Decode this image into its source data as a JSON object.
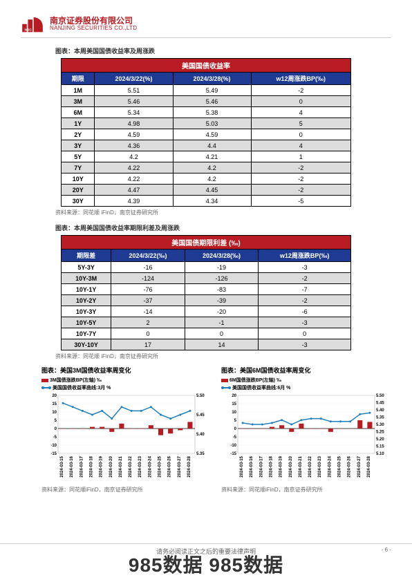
{
  "header": {
    "company_cn": "南京证券股份有限公司",
    "company_en": "NANJING SECURITIES CO.,LTD",
    "logo_color": "#b81c22"
  },
  "table1": {
    "title": "图表：本周美国国债收益率及周涨跌",
    "main_title": "美国国债收益率",
    "headers": [
      "期限",
      "2024/3/22(%)",
      "2024/3/28(%)",
      "w12周涨跌BP(‰)"
    ],
    "rows": [
      {
        "c": [
          "1M",
          "5.51",
          "5.49",
          "-2"
        ],
        "grey": false
      },
      {
        "c": [
          "3M",
          "5.46",
          "5.46",
          "0"
        ],
        "grey": true
      },
      {
        "c": [
          "6M",
          "5.34",
          "5.38",
          "4"
        ],
        "grey": false
      },
      {
        "c": [
          "1Y",
          "4.98",
          "5.03",
          "5"
        ],
        "grey": true
      },
      {
        "c": [
          "2Y",
          "4.59",
          "4.59",
          "0"
        ],
        "grey": false
      },
      {
        "c": [
          "3Y",
          "4.36",
          "4.4",
          "4"
        ],
        "grey": true
      },
      {
        "c": [
          "5Y",
          "4.2",
          "4.21",
          "1"
        ],
        "grey": false
      },
      {
        "c": [
          "7Y",
          "4.22",
          "4.2",
          "-2"
        ],
        "grey": true
      },
      {
        "c": [
          "10Y",
          "4.22",
          "4.2",
          "-2"
        ],
        "grey": false
      },
      {
        "c": [
          "20Y",
          "4.47",
          "4.45",
          "-2"
        ],
        "grey": true
      },
      {
        "c": [
          "30Y",
          "4.39",
          "4.34",
          "-5"
        ],
        "grey": false
      }
    ],
    "source": "资料来源：同花顺 iFinD，南京证券研究所"
  },
  "table2": {
    "title": "图表：本周美国国债收益率期限利差及周涨跌",
    "main_title": "美国国债期限利差 (‰)",
    "headers": [
      "期限差",
      "2024/3/22(‰)",
      "2024/3/28(‰)",
      "w12周涨跌BP(‰)"
    ],
    "rows": [
      {
        "c": [
          "5Y-3Y",
          "-16",
          "-19",
          "-3"
        ],
        "grey": false
      },
      {
        "c": [
          "10Y-3M",
          "-124",
          "-126",
          "-2"
        ],
        "grey": true
      },
      {
        "c": [
          "10Y-1Y",
          "-76",
          "-83",
          "-7"
        ],
        "grey": false
      },
      {
        "c": [
          "10Y-2Y",
          "-37",
          "-39",
          "-2"
        ],
        "grey": true
      },
      {
        "c": [
          "10Y-3Y",
          "-14",
          "-20",
          "-6"
        ],
        "grey": false
      },
      {
        "c": [
          "10Y-5Y",
          "2",
          "-1",
          "-3"
        ],
        "grey": true
      },
      {
        "c": [
          "10Y-7Y",
          "0",
          "0",
          "0"
        ],
        "grey": false
      },
      {
        "c": [
          "30Y-10Y",
          "17",
          "14",
          "-3"
        ],
        "grey": true
      }
    ],
    "source": "资料来源：同花顺 iFinD，南京证券研究所"
  },
  "charts": {
    "left": {
      "title": "图表：美国3M国债收益率周变化",
      "legend_bar": "3M国债涨跌BP(左轴) ‰",
      "legend_line": "美国国债收益率曲线:3月 %",
      "x_labels": [
        "2024-03-15",
        "2024-03-16",
        "2024-03-17",
        "2024-03-18",
        "2024-03-19",
        "2024-03-20",
        "2024-03-21",
        "2024-03-22",
        "2024-03-23",
        "2024-03-24",
        "2024-03-25",
        "2024-03-26",
        "2024-03-27",
        "2024-03-28"
      ],
      "bars": [
        0,
        0,
        0,
        1,
        1,
        -2,
        3,
        0,
        0,
        2,
        -4,
        -3,
        -1,
        4
      ],
      "line": [
        5.48,
        5.47,
        5.46,
        5.45,
        5.46,
        5.44,
        5.47,
        5.46,
        5.46,
        5.47,
        5.45,
        5.44,
        5.45,
        5.46
      ],
      "y_left": {
        "min": -15,
        "max": 20,
        "step": 5
      },
      "y_right": {
        "min": 5.35,
        "max": 5.5,
        "step": 0.05
      },
      "bar_color": "#b81c22",
      "line_color": "#1f7fbf",
      "source": "资料来源：同花顺iFinD，南京证券研究所"
    },
    "right": {
      "title": "图表：美国6M国债收益率周变化",
      "legend_bar": "6M国债涨跌BP(左轴) ‰",
      "legend_line": "美国国债收益率曲线:6月 %",
      "x_labels": [
        "2024-03-15",
        "2024-03-16",
        "2024-03-17",
        "2024-03-18",
        "2024-03-19",
        "2024-03-20",
        "2024-03-21",
        "2024-03-22",
        "2024-03-23",
        "2024-03-24",
        "2024-03-25",
        "2024-03-26",
        "2024-03-27",
        "2024-03-28"
      ],
      "bars": [
        0,
        0,
        0,
        1,
        2,
        -2,
        3,
        0,
        0,
        -2,
        0,
        0,
        5,
        4
      ],
      "line": [
        5.31,
        5.3,
        5.3,
        5.31,
        5.33,
        5.3,
        5.33,
        5.34,
        5.34,
        5.32,
        5.32,
        5.32,
        5.37,
        5.38
      ],
      "y_left": {
        "min": -15,
        "max": 20,
        "step": 5
      },
      "y_right": {
        "min": 5.1,
        "max": 5.5,
        "step": 0.05
      },
      "bar_color": "#b81c22",
      "line_color": "#1f7fbf",
      "source": "资料来源：同花顺iFinD，南京证券研究所"
    }
  },
  "footer": {
    "disclaimer": "请务必阅读正文之后的重要法律声明",
    "page": "- 6 -"
  },
  "watermark": "985数据 985数据"
}
